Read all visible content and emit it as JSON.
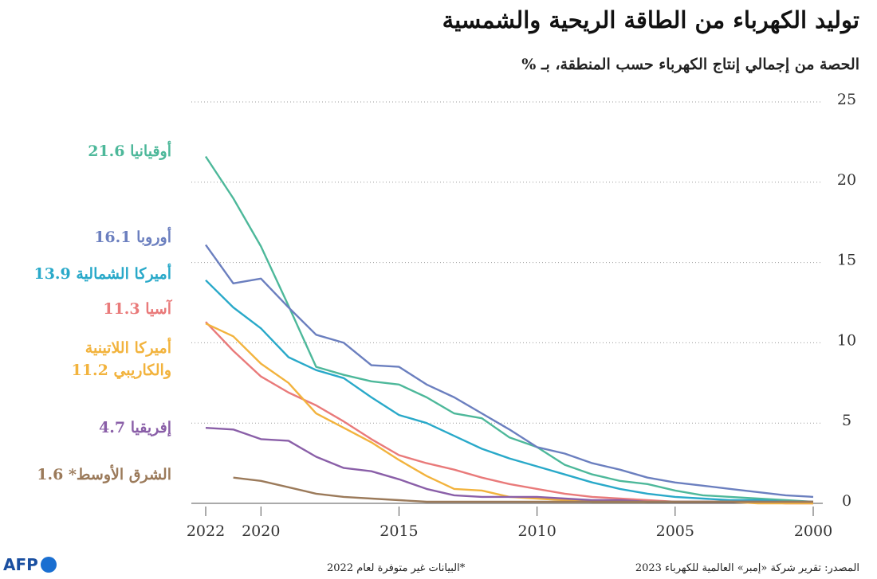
{
  "chart_data": {
    "type": "line",
    "title": "توليد الكهرباء من الطاقة الريحية والشمسية",
    "subtitle": "الحصة من إجمالي إنتاج الكهرباء حسب المنطقة، بـ %",
    "source": "المصدر: تقرير شركة «إمبر» العالمية للكهرباء 2023",
    "note": "*البيانات غير متوفرة لعام 2022",
    "logo": "AFP",
    "x": [
      2000,
      2001,
      2002,
      2003,
      2004,
      2005,
      2006,
      2007,
      2008,
      2009,
      2010,
      2011,
      2012,
      2013,
      2014,
      2015,
      2016,
      2017,
      2018,
      2019,
      2020,
      2021,
      2022
    ],
    "xlim": [
      2000,
      2022
    ],
    "xticks": [
      2000,
      2005,
      2010,
      2015,
      2020,
      2022
    ],
    "x_reversed": true,
    "ylim": [
      0,
      25
    ],
    "yticks": [
      0,
      5,
      10,
      15,
      20,
      25
    ],
    "grid": true,
    "series": [
      {
        "name": "أوقيانيا",
        "color": "#4db89a",
        "values": [
          0.1,
          0.2,
          0.3,
          0.4,
          0.5,
          0.8,
          1.2,
          1.4,
          1.8,
          2.4,
          3.5,
          4.1,
          5.3,
          5.6,
          6.6,
          7.4,
          7.6,
          8.0,
          8.5,
          12.3,
          16.0,
          19.0,
          21.6
        ]
      },
      {
        "name": "أوروبا",
        "color": "#6b7fbf",
        "values": [
          0.4,
          0.5,
          0.7,
          0.9,
          1.1,
          1.3,
          1.6,
          2.1,
          2.5,
          3.1,
          3.5,
          4.6,
          5.6,
          6.6,
          7.4,
          8.5,
          8.6,
          10.0,
          10.5,
          12.2,
          14.0,
          13.7,
          16.1
        ]
      },
      {
        "name": "أميركا الشمالية",
        "color": "#29a9c9",
        "values": [
          0.1,
          0.1,
          0.2,
          0.2,
          0.3,
          0.4,
          0.6,
          0.9,
          1.3,
          1.8,
          2.3,
          2.8,
          3.4,
          4.2,
          5.0,
          5.5,
          6.6,
          7.8,
          8.3,
          9.1,
          10.9,
          12.2,
          13.9
        ]
      },
      {
        "name": "آسيا",
        "color": "#e97a7a",
        "values": [
          0,
          0,
          0.1,
          0.1,
          0.1,
          0.1,
          0.2,
          0.3,
          0.4,
          0.6,
          0.9,
          1.2,
          1.6,
          2.1,
          2.5,
          3.0,
          4.0,
          5.1,
          6.1,
          6.9,
          7.9,
          9.5,
          11.3
        ]
      },
      {
        "name": "أميركا اللاتينية والكاريبي",
        "color": "#f2b33d",
        "values": [
          0,
          0,
          0,
          0.1,
          0.1,
          0.1,
          0.1,
          0.1,
          0.1,
          0.2,
          0.3,
          0.4,
          0.8,
          0.9,
          1.7,
          2.7,
          3.8,
          4.7,
          5.6,
          7.5,
          8.7,
          10.4,
          11.2
        ]
      },
      {
        "name": "إفريقيا",
        "color": "#8a5fa8",
        "values": [
          0.1,
          0.1,
          0.1,
          0.1,
          0.1,
          0.1,
          0.1,
          0.2,
          0.2,
          0.3,
          0.4,
          0.4,
          0.4,
          0.5,
          0.9,
          1.5,
          2.0,
          2.2,
          2.9,
          3.9,
          4.0,
          4.6,
          4.7
        ]
      },
      {
        "name": "الشرق الأوسط*",
        "color": "#9b7a5a",
        "values": [
          0.1,
          0.1,
          0.1,
          0.1,
          0.1,
          0.1,
          0.1,
          0.1,
          0.1,
          0.1,
          0.1,
          0.1,
          0.1,
          0.1,
          0.1,
          0.2,
          0.3,
          0.4,
          0.6,
          1.0,
          1.4,
          1.6,
          null
        ]
      }
    ]
  }
}
